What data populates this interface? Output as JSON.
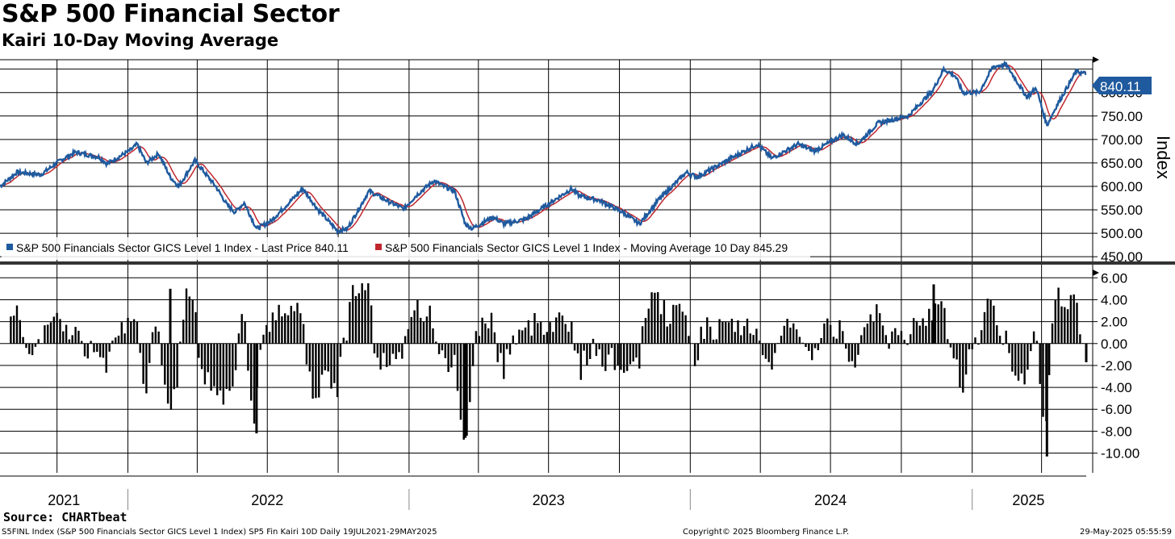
{
  "header": {
    "title": "S&P 500 Financial Sector",
    "subtitle": "Kairi 10-Day Moving Average"
  },
  "footer": {
    "source": "Source: CHARTbeat",
    "description": "S5FINL Index (S&P 500 Financials Sector GICS Level 1 Index) SP5 Fin Kairi 10D  Daily 19JUL2021-29MAY2025",
    "copyright": "Copyright© 2025 Bloomberg Finance L.P.",
    "timestamp": "29-May-2025 05:55:59"
  },
  "colors": {
    "price_line": "#1f5a9e",
    "ma_line": "#c0272d",
    "bars": "#000000",
    "grid": "#000000",
    "last_price_badge": "#1f5a9e"
  },
  "chart_data": [
    {
      "type": "line",
      "panel": "upper",
      "ylabel": "Index",
      "ylim": [
        440,
        870
      ],
      "y_ticks": [
        "450.00",
        "500.00",
        "550.00",
        "600.00",
        "650.00",
        "700.00",
        "750.00",
        "800.00"
      ],
      "last_price_label": "840.11",
      "x_range": [
        "2021-07-19",
        "2025-05-29"
      ],
      "legend": [
        {
          "name": "S&P 500 Financials Sector GICS Level 1 Index - Last Price 840.11",
          "color": "#1f5a9e"
        },
        {
          "name": "S&P 500 Financials Sector GICS Level 1 Index - Moving Average 10 Day 845.29",
          "color": "#c0272d"
        }
      ],
      "series": [
        {
          "name": "S&P 500 Financials Sector GICS Level 1 Index - Last Price",
          "points": [
            [
              "2021-07-19",
              600
            ],
            [
              "2021-08-10",
              630
            ],
            [
              "2021-09-10",
              625
            ],
            [
              "2021-10-05",
              655
            ],
            [
              "2021-10-25",
              673
            ],
            [
              "2021-11-25",
              662
            ],
            [
              "2021-12-05",
              648
            ],
            [
              "2022-01-05",
              678
            ],
            [
              "2022-01-13",
              690
            ],
            [
              "2022-01-25",
              650
            ],
            [
              "2022-02-10",
              670
            ],
            [
              "2022-02-25",
              620
            ],
            [
              "2022-03-08",
              600
            ],
            [
              "2022-03-29",
              655
            ],
            [
              "2022-04-25",
              600
            ],
            [
              "2022-05-10",
              560
            ],
            [
              "2022-05-20",
              545
            ],
            [
              "2022-06-01",
              565
            ],
            [
              "2022-06-17",
              510
            ],
            [
              "2022-07-05",
              525
            ],
            [
              "2022-08-16",
              595
            ],
            [
              "2022-09-05",
              550
            ],
            [
              "2022-09-30",
              505
            ],
            [
              "2022-10-13",
              510
            ],
            [
              "2022-11-10",
              590
            ],
            [
              "2022-12-05",
              568
            ],
            [
              "2022-12-25",
              552
            ],
            [
              "2023-01-10",
              580
            ],
            [
              "2023-02-02",
              612
            ],
            [
              "2023-02-15",
              600
            ],
            [
              "2023-03-01",
              590
            ],
            [
              "2023-03-15",
              520
            ],
            [
              "2023-03-24",
              510
            ],
            [
              "2023-04-20",
              535
            ],
            [
              "2023-05-04",
              520
            ],
            [
              "2023-06-01",
              530
            ],
            [
              "2023-07-31",
              595
            ],
            [
              "2023-08-10",
              580
            ],
            [
              "2023-09-05",
              570
            ],
            [
              "2023-10-05",
              545
            ],
            [
              "2023-10-27",
              520
            ],
            [
              "2023-11-20",
              570
            ],
            [
              "2023-12-27",
              630
            ],
            [
              "2024-01-10",
              620
            ],
            [
              "2024-02-01",
              640
            ],
            [
              "2024-03-28",
              690
            ],
            [
              "2024-04-16",
              660
            ],
            [
              "2024-05-20",
              690
            ],
            [
              "2024-06-10",
              675
            ],
            [
              "2024-07-17",
              710
            ],
            [
              "2024-08-05",
              690
            ],
            [
              "2024-09-01",
              735
            ],
            [
              "2024-10-10",
              750
            ],
            [
              "2024-11-11",
              805
            ],
            [
              "2024-11-25",
              850
            ],
            [
              "2024-12-10",
              835
            ],
            [
              "2024-12-20",
              800
            ],
            [
              "2025-01-10",
              800
            ],
            [
              "2025-01-28",
              855
            ],
            [
              "2025-02-14",
              860
            ],
            [
              "2025-03-13",
              790
            ],
            [
              "2025-03-25",
              810
            ],
            [
              "2025-04-08",
              730
            ],
            [
              "2025-04-20",
              770
            ],
            [
              "2025-05-16",
              845
            ],
            [
              "2025-05-29",
              840
            ]
          ]
        },
        {
          "name": "S&P 500 Financials Sector GICS Level 1 Index - Moving Average 10 Day",
          "smoothing_of": "Last Price",
          "window_days": 10
        }
      ]
    },
    {
      "type": "bar",
      "panel": "lower",
      "ylim": [
        -11.8,
        7.2
      ],
      "y_ticks": [
        "6.00",
        "4.00",
        "2.00",
        "0.00",
        "-2.00",
        "-4.00",
        "-6.00",
        "-8.00",
        "-10.00"
      ],
      "x_labels": [
        "2021",
        "2022",
        "2023",
        "2024",
        "2025"
      ],
      "extremes": [
        {
          "date": "2022-06-17",
          "value": -8.2
        },
        {
          "date": "2022-02-25",
          "value": 5.0
        },
        {
          "date": "2023-03-15",
          "value": -8.6
        },
        {
          "date": "2024-11-12",
          "value": 5.4
        },
        {
          "date": "2025-04-08",
          "value": -10.3
        },
        {
          "date": "2025-05-29",
          "value": -1.7
        }
      ]
    }
  ]
}
